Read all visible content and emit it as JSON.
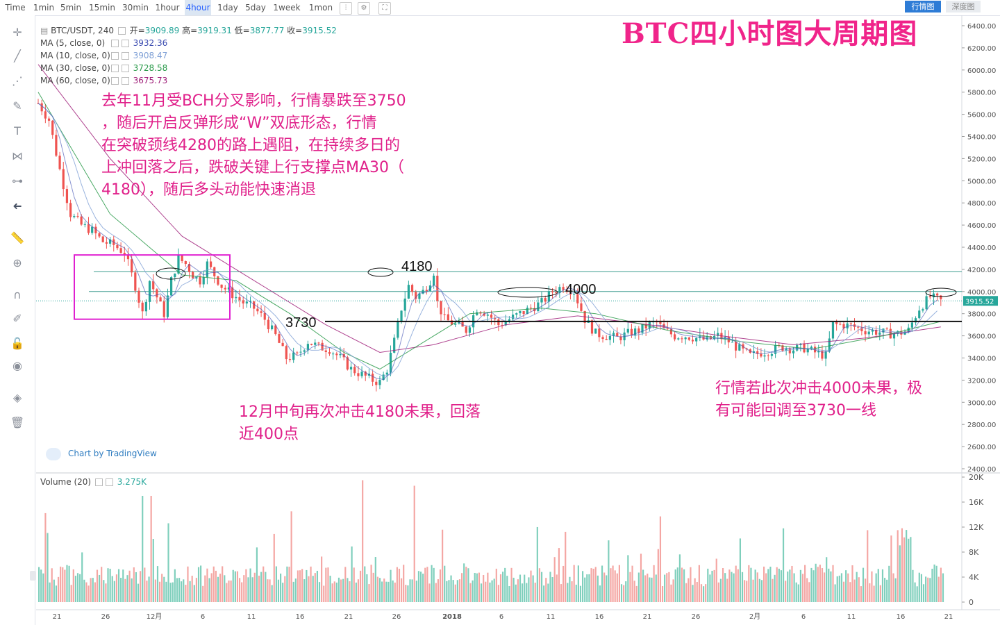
{
  "toolbar": {
    "timeframes": [
      "Time",
      "1min",
      "5min",
      "15min",
      "30min",
      "1hour",
      "4hour",
      "1day",
      "5day",
      "1week",
      "1mon"
    ],
    "active_timeframe": "4hour",
    "right_tabs": [
      "行情图",
      "深度图"
    ],
    "icons": [
      "candles-icon",
      "settings-icon",
      "fullscreen-icon"
    ]
  },
  "drawing_tools": [
    "crosshair-icon",
    "trendline-icon",
    "fib-icon",
    "brush-icon",
    "text-icon",
    "pattern-icon",
    "measure-icon",
    "back-arrow-icon",
    "ruler-icon",
    "zoom-icon",
    "magnet-icon",
    "pencil-lock-icon",
    "lock-icon",
    "eye-icon",
    "layers-icon",
    "trash-icon"
  ],
  "legend": {
    "symbol": "BTC/USDT, 240",
    "open_label": "开=",
    "open": "3909.89",
    "high_label": "高=",
    "high": "3919.31",
    "low_label": "低=",
    "low": "3877.77",
    "close_label": "收=",
    "close": "3915.52",
    "ma": [
      {
        "label": "MA (5, close, 0)",
        "value": "3932.36",
        "color": "#3a4bb0"
      },
      {
        "label": "MA (10, close, 0)",
        "value": "3908.47",
        "color": "#7fa0d6"
      },
      {
        "label": "MA (30, close, 0)",
        "value": "3728.58",
        "color": "#2a9a4a"
      },
      {
        "label": "MA (60, close, 0)",
        "value": "3675.73",
        "color": "#a0207a"
      }
    ]
  },
  "volume_legend": {
    "label": "Volume (20)",
    "value": "3.275K"
  },
  "title": "BTC四小时图大周期图",
  "annotations": {
    "note1": [
      "去年11月受BCH分叉影响，行情暴跌至3750",
      "，随后开启反弹形成“W”双底形态，行情",
      "在突破颈线4280的路上遇阻，在持续多日的",
      "上冲回落之后，跌破关键上行支撑点MA30（",
      "4180），随后多头动能快速消退"
    ],
    "note2": [
      "12月中旬再次冲击4180未果，回落",
      "近400点"
    ],
    "note3": [
      "行情若此次冲击4000未果，极",
      "有可能回调至3730一线"
    ],
    "level_4180": "4180",
    "level_4000": "4000",
    "level_3730": "3730"
  },
  "brand": "Chart by TradingView",
  "colors": {
    "up": "#26a69a",
    "down": "#ef5350",
    "annotation": "#e0208a",
    "price_tag": "#26a69a"
  },
  "chart_data": {
    "type": "candlestick",
    "price_axis": {
      "ticks": [
        2400,
        2600,
        2800,
        3000,
        3200,
        3400,
        3600,
        3800,
        4000,
        4200,
        4400,
        4600,
        4800,
        5000,
        5200,
        5400,
        5600,
        5800,
        6000,
        6200,
        6400
      ],
      "ylim": [
        2400,
        6450
      ]
    },
    "volume_axis": {
      "ticks": [
        0,
        4000,
        8000,
        12000,
        16000,
        20000
      ],
      "tick_labels": [
        "0",
        "4K",
        "8K",
        "12K",
        "16K",
        "20K"
      ]
    },
    "x_tick_labels": [
      "21",
      "26",
      "12月",
      "6",
      "11",
      "16",
      "21",
      "26",
      "2018",
      "6",
      "11",
      "16",
      "21",
      "26",
      "2月",
      "6",
      "11",
      "16",
      "21"
    ],
    "current_price": 3915.52,
    "horizontal_levels": [
      4180,
      4000,
      3730
    ],
    "highlight_box": {
      "price_top": 4330,
      "price_bottom": 3750
    },
    "price_path": [
      [
        0,
        5700
      ],
      [
        3,
        5550
      ],
      [
        6,
        5100
      ],
      [
        9,
        4700
      ],
      [
        12,
        4600
      ],
      [
        15,
        4550
      ],
      [
        18,
        4450
      ],
      [
        21,
        4420
      ],
      [
        24,
        4350
      ],
      [
        27,
        4050
      ],
      [
        29,
        3800
      ],
      [
        31,
        4100
      ],
      [
        33,
        3950
      ],
      [
        35,
        3800
      ],
      [
        37,
        4100
      ],
      [
        39,
        4300
      ],
      [
        41,
        4250
      ],
      [
        43,
        4150
      ],
      [
        45,
        4100
      ],
      [
        47,
        4250
      ],
      [
        49,
        4150
      ],
      [
        51,
        4050
      ],
      [
        53,
        4000
      ],
      [
        55,
        3950
      ],
      [
        57,
        3900
      ],
      [
        60,
        3850
      ],
      [
        63,
        3750
      ],
      [
        66,
        3600
      ],
      [
        69,
        3400
      ],
      [
        72,
        3420
      ],
      [
        75,
        3550
      ],
      [
        78,
        3500
      ],
      [
        81,
        3480
      ],
      [
        84,
        3400
      ],
      [
        87,
        3300
      ],
      [
        90,
        3250
      ],
      [
        93,
        3200
      ],
      [
        95,
        3180
      ],
      [
        97,
        3300
      ],
      [
        99,
        3550
      ],
      [
        101,
        3850
      ],
      [
        103,
        4050
      ],
      [
        105,
        3950
      ],
      [
        107,
        4000
      ],
      [
        109,
        4100
      ],
      [
        110,
        4180
      ],
      [
        111,
        3900
      ],
      [
        113,
        3750
      ],
      [
        116,
        3700
      ],
      [
        119,
        3650
      ],
      [
        122,
        3850
      ],
      [
        125,
        3800
      ],
      [
        128,
        3700
      ],
      [
        131,
        3750
      ],
      [
        134,
        3800
      ],
      [
        137,
        3850
      ],
      [
        140,
        3900
      ],
      [
        143,
        4000
      ],
      [
        146,
        4050
      ],
      [
        149,
        4000
      ],
      [
        152,
        3750
      ],
      [
        155,
        3620
      ],
      [
        158,
        3600
      ],
      [
        161,
        3580
      ],
      [
        164,
        3620
      ],
      [
        167,
        3650
      ],
      [
        170,
        3700
      ],
      [
        172,
        3720
      ],
      [
        174,
        3650
      ],
      [
        177,
        3600
      ],
      [
        180,
        3600
      ],
      [
        183,
        3580
      ],
      [
        186,
        3560
      ],
      [
        189,
        3600
      ],
      [
        192,
        3550
      ],
      [
        195,
        3480
      ],
      [
        198,
        3420
      ],
      [
        201,
        3450
      ],
      [
        204,
        3470
      ],
      [
        207,
        3500
      ],
      [
        210,
        3480
      ],
      [
        213,
        3490
      ],
      [
        216,
        3450
      ],
      [
        219,
        3420
      ],
      [
        221,
        3700
      ],
      [
        224,
        3700
      ],
      [
        227,
        3680
      ],
      [
        230,
        3650
      ],
      [
        233,
        3640
      ],
      [
        236,
        3620
      ],
      [
        239,
        3620
      ],
      [
        242,
        3650
      ],
      [
        245,
        3850
      ],
      [
        248,
        3950
      ],
      [
        251,
        3915
      ]
    ],
    "ma_paths": [
      {
        "name": "MA60",
        "color": "#a0207a",
        "points": [
          [
            0,
            6050
          ],
          [
            20,
            5200
          ],
          [
            40,
            4500
          ],
          [
            60,
            4100
          ],
          [
            80,
            3700
          ],
          [
            95,
            3450
          ],
          [
            110,
            3520
          ],
          [
            130,
            3700
          ],
          [
            150,
            3780
          ],
          [
            170,
            3700
          ],
          [
            190,
            3600
          ],
          [
            210,
            3520
          ],
          [
            230,
            3580
          ],
          [
            251,
            3680
          ]
        ]
      },
      {
        "name": "MA30",
        "color": "#2a9a4a",
        "points": [
          [
            0,
            5800
          ],
          [
            20,
            4700
          ],
          [
            40,
            4150
          ],
          [
            55,
            4100
          ],
          [
            70,
            3800
          ],
          [
            85,
            3450
          ],
          [
            95,
            3300
          ],
          [
            105,
            3500
          ],
          [
            120,
            3800
          ],
          [
            140,
            3850
          ],
          [
            155,
            3800
          ],
          [
            175,
            3650
          ],
          [
            195,
            3550
          ],
          [
            215,
            3480
          ],
          [
            235,
            3600
          ],
          [
            251,
            3730
          ]
        ]
      }
    ],
    "volume_bars": 420
  }
}
